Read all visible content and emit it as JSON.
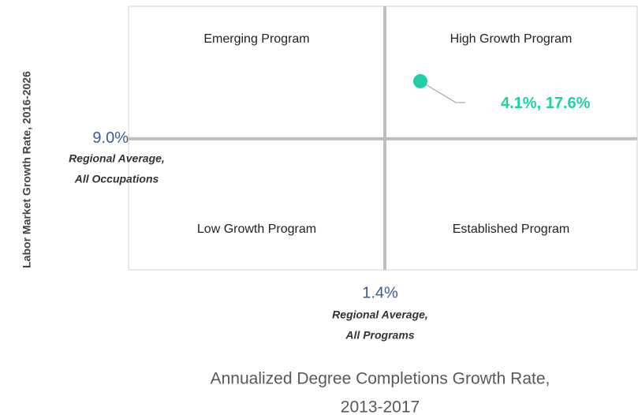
{
  "chart_data": {
    "type": "scatter",
    "xlabel": [
      "Annualized Degree Completions Growth Rate,",
      "2013-2017"
    ],
    "ylabel": "Labor Market Growth Rate, 2016-2026",
    "xlim": [
      -18.1,
      20.6
    ],
    "ylim": [
      -10.6,
      28.8
    ],
    "xref": {
      "value": 1.4,
      "label": "1.4%",
      "note": [
        "Regional Average,",
        "All Programs"
      ]
    },
    "yref": {
      "value": 9.0,
      "label": "9.0%",
      "note": [
        "Regional Average,",
        "All Occupations"
      ]
    },
    "quadrants": [
      "Emerging Program",
      "High Growth Program",
      "Low Growth Program",
      "Established Program"
    ],
    "series": [
      {
        "color": "#1fcfa6",
        "x": [
          4.1
        ],
        "values": [
          17.6
        ],
        "value_labels": [
          "4.1%, 17.6%"
        ]
      }
    ]
  }
}
